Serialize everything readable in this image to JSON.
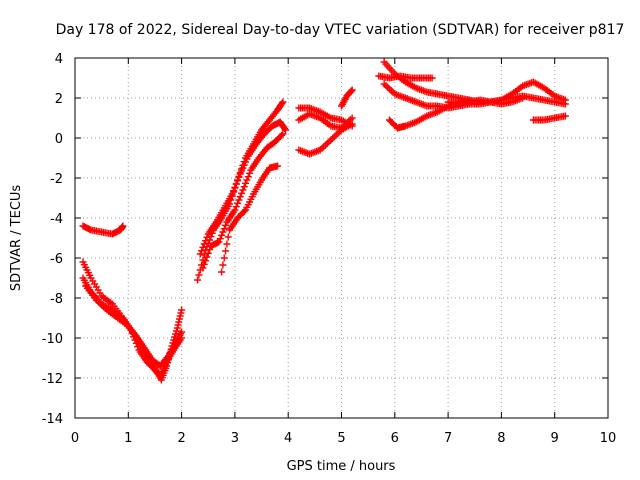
{
  "chart_data": {
    "type": "scatter",
    "title": "Day 178 of 2022, Sidereal Day-to-day VTEC variation (SDTVAR) for receiver p817",
    "xlabel": "GPS time / hours",
    "ylabel": "SDTVAR / TECUs",
    "xlim": [
      0,
      10
    ],
    "ylim": [
      -14,
      4
    ],
    "xticks": [
      0,
      1,
      2,
      3,
      4,
      5,
      6,
      7,
      8,
      9,
      10
    ],
    "yticks": [
      -14,
      -12,
      -10,
      -8,
      -6,
      -4,
      -2,
      0,
      2,
      4
    ],
    "grid": true,
    "marker": "plus",
    "color": "#ff0000",
    "series": [
      {
        "x": [
          0.15,
          0.3,
          0.5,
          0.7,
          0.85,
          0.9
        ],
        "y": [
          -4.4,
          -4.6,
          -4.7,
          -4.8,
          -4.6,
          -4.4
        ]
      },
      {
        "x": [
          0.15,
          0.3,
          0.5,
          0.7,
          0.9,
          1.05,
          1.2,
          1.35,
          1.5,
          1.62,
          1.72,
          1.82,
          1.92,
          2.0
        ],
        "y": [
          -6.2,
          -7.0,
          -7.9,
          -8.3,
          -9.0,
          -9.6,
          -10.2,
          -10.8,
          -11.5,
          -12.1,
          -11.4,
          -10.4,
          -9.5,
          -8.6
        ]
      },
      {
        "x": [
          0.15,
          0.3,
          0.5,
          0.7,
          0.9,
          1.05,
          1.2,
          1.35,
          1.5,
          1.6,
          1.72,
          1.85,
          2.0
        ],
        "y": [
          -7.0,
          -7.7,
          -8.3,
          -8.6,
          -9.0,
          -9.6,
          -10.6,
          -11.2,
          -11.6,
          -11.9,
          -11.2,
          -10.6,
          -10.0
        ]
      },
      {
        "x": [
          0.2,
          0.4,
          0.6,
          0.8,
          1.0,
          1.15,
          1.3,
          1.45,
          1.6,
          1.75,
          1.9,
          2.0
        ],
        "y": [
          -7.4,
          -8.1,
          -8.6,
          -9.0,
          -9.4,
          -9.9,
          -10.5,
          -11.1,
          -11.4,
          -10.9,
          -10.2,
          -9.7
        ]
      },
      {
        "x": [
          2.3,
          2.45,
          2.6,
          2.75,
          2.9,
          3.05,
          3.2,
          3.35,
          3.5,
          3.65,
          3.8,
          3.9
        ],
        "y": [
          -7.1,
          -5.6,
          -4.6,
          -4.0,
          -3.3,
          -2.1,
          -1.0,
          -0.3,
          0.4,
          0.9,
          1.4,
          1.8
        ]
      },
      {
        "x": [
          2.35,
          2.5,
          2.65,
          2.8,
          2.95,
          3.1,
          3.25,
          3.4,
          3.55,
          3.7,
          3.85,
          3.95
        ],
        "y": [
          -5.8,
          -4.8,
          -4.2,
          -3.5,
          -2.8,
          -1.8,
          -0.9,
          -0.3,
          0.2,
          0.6,
          0.8,
          0.4
        ]
      },
      {
        "x": [
          2.4,
          2.55,
          2.7,
          2.85,
          3.0,
          3.15,
          3.3,
          3.45,
          3.6,
          3.75,
          3.9
        ],
        "y": [
          -6.5,
          -5.4,
          -5.2,
          -4.2,
          -3.6,
          -2.6,
          -1.6,
          -1.0,
          -0.5,
          -0.2,
          0.2
        ]
      },
      {
        "x": [
          2.75,
          2.9,
          3.05,
          3.2,
          3.35,
          3.5,
          3.65,
          3.8
        ],
        "y": [
          -6.7,
          -4.6,
          -4.0,
          -3.6,
          -2.8,
          -2.1,
          -1.5,
          -1.4
        ]
      },
      {
        "x": [
          4.2,
          4.4,
          4.6,
          4.8,
          5.0,
          5.2
        ],
        "y": [
          1.5,
          1.5,
          1.3,
          1.0,
          0.9,
          0.6
        ]
      },
      {
        "x": [
          4.2,
          4.4,
          4.6,
          4.8,
          5.0,
          5.2
        ],
        "y": [
          0.9,
          1.2,
          1.0,
          0.6,
          0.5,
          1.0
        ]
      },
      {
        "x": [
          4.2,
          4.4,
          4.6,
          4.8,
          5.0,
          5.2
        ],
        "y": [
          -0.6,
          -0.8,
          -0.6,
          -0.1,
          0.4,
          0.7
        ]
      },
      {
        "x": [
          5.0,
          5.1,
          5.2
        ],
        "y": [
          1.6,
          2.1,
          2.4
        ]
      },
      {
        "x": [
          5.8,
          6.0,
          6.2,
          6.4,
          6.6,
          6.8,
          7.0,
          7.2,
          7.4,
          7.6,
          7.8,
          8.0,
          8.2,
          8.4,
          8.6,
          8.8,
          9.0,
          9.2
        ],
        "y": [
          2.7,
          2.2,
          2.0,
          1.8,
          1.6,
          1.6,
          1.5,
          1.6,
          1.7,
          1.7,
          1.8,
          1.9,
          2.0,
          2.1,
          2.0,
          1.9,
          1.8,
          1.7
        ]
      },
      {
        "x": [
          5.8,
          6.0,
          6.2,
          6.4,
          6.6,
          6.8,
          7.0,
          7.2,
          7.4,
          7.6,
          7.8,
          8.0,
          8.2,
          8.4,
          8.6,
          8.8,
          9.0,
          9.2
        ],
        "y": [
          3.8,
          3.2,
          2.8,
          2.5,
          2.3,
          2.2,
          2.1,
          2.0,
          1.9,
          1.8,
          1.8,
          1.9,
          2.2,
          2.6,
          2.8,
          2.5,
          2.1,
          1.9
        ]
      },
      {
        "x": [
          5.7,
          5.9,
          6.1,
          6.3,
          6.5,
          6.7
        ],
        "y": [
          3.1,
          3.0,
          3.1,
          3.0,
          3.0,
          3.0
        ]
      },
      {
        "x": [
          5.9,
          6.05,
          6.2,
          6.4,
          6.6,
          6.8,
          7.0,
          7.2,
          7.4
        ],
        "y": [
          0.9,
          0.5,
          0.6,
          0.8,
          1.1,
          1.3,
          1.6,
          1.8,
          1.9
        ]
      },
      {
        "x": [
          8.6,
          8.8,
          9.0,
          9.2
        ],
        "y": [
          0.9,
          0.9,
          1.0,
          1.1
        ]
      },
      {
        "x": [
          7.0,
          7.2,
          7.4,
          7.6,
          7.8,
          8.0,
          8.2,
          8.4
        ],
        "y": [
          1.8,
          1.7,
          1.8,
          1.9,
          1.8,
          1.7,
          1.8,
          2.0
        ]
      }
    ]
  }
}
